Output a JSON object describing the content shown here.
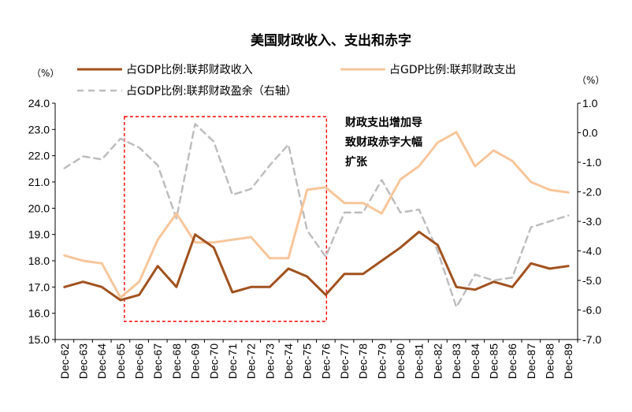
{
  "chart_data": {
    "type": "line",
    "title": "美国财政收入、支出和赤字",
    "left_unit": "（%）",
    "right_unit": "（%）",
    "categories": [
      "Dec-62",
      "Dec-63",
      "Dec-64",
      "Dec-65",
      "Dec-66",
      "Dec-67",
      "Dec-68",
      "Dec-69",
      "Dec-70",
      "Dec-71",
      "Dec-72",
      "Dec-73",
      "Dec-74",
      "Dec-75",
      "Dec-76",
      "Dec-77",
      "Dec-78",
      "Dec-79",
      "Dec-80",
      "Dec-81",
      "Dec-82",
      "Dec-83",
      "Dec-84",
      "Dec-85",
      "Dec-86",
      "Dec-87",
      "Dec-88",
      "Dec-89"
    ],
    "ylim_left": [
      15.0,
      24.0
    ],
    "ylim_right": [
      -7.0,
      1.0
    ],
    "yticks_left": [
      "15.0",
      "16.0",
      "17.0",
      "18.0",
      "19.0",
      "20.0",
      "21.0",
      "22.0",
      "23.0",
      "24.0"
    ],
    "yticks_right": [
      "-7.0",
      "-6.0",
      "-5.0",
      "-4.0",
      "-3.0",
      "-2.0",
      "-1.0",
      "0.0",
      "1.0"
    ],
    "series": [
      {
        "name": "占GDP比例:联邦财政收入",
        "axis": "left",
        "color": "#a0521e",
        "dash": false,
        "values": [
          17.0,
          17.2,
          17.0,
          16.5,
          16.7,
          17.8,
          17.0,
          19.0,
          18.5,
          16.8,
          17.0,
          17.0,
          17.7,
          17.4,
          16.7,
          17.5,
          17.5,
          18.0,
          18.5,
          19.1,
          18.6,
          17.0,
          16.9,
          17.2,
          17.0,
          17.9,
          17.7,
          17.8
        ]
      },
      {
        "name": "占GDP比例:联邦财政支出",
        "axis": "left",
        "color": "#f7c69a",
        "dash": false,
        "values": [
          18.2,
          18.0,
          17.9,
          16.6,
          17.2,
          18.8,
          19.8,
          18.7,
          18.7,
          18.8,
          18.9,
          18.1,
          18.1,
          20.7,
          20.8,
          20.2,
          20.2,
          19.8,
          21.1,
          21.6,
          22.5,
          22.9,
          21.6,
          22.2,
          21.8,
          21.0,
          20.7,
          20.6
        ]
      },
      {
        "name": "占GDP比例:联邦财政盈余（右轴）",
        "axis": "right",
        "color": "#bdbdbd",
        "dash": true,
        "values": [
          -1.2,
          -0.8,
          -0.9,
          -0.2,
          -0.5,
          -1.1,
          -2.9,
          0.3,
          -0.3,
          -2.1,
          -1.9,
          -1.1,
          -0.4,
          -3.3,
          -4.2,
          -2.7,
          -2.7,
          -1.6,
          -2.7,
          -2.6,
          -4.0,
          -5.9,
          -4.8,
          -5.0,
          -4.9,
          -3.2,
          -3.0,
          -2.8
        ]
      }
    ],
    "annotation": {
      "lines": [
        "财政支出增加导",
        "致财政赤字大幅",
        "扩张"
      ],
      "highlight_start": "Dec-65",
      "highlight_end": "Dec-76"
    },
    "highlight_color": "#ff0000",
    "legend_position": "top",
    "grid": false
  }
}
